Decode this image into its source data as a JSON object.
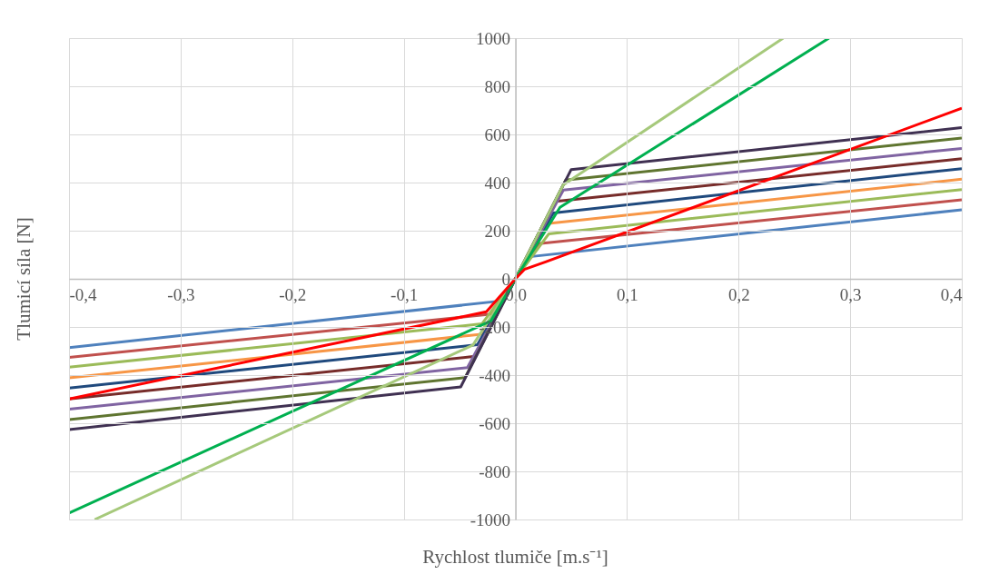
{
  "chart_data": {
    "type": "line",
    "xlabel": "Rychlost tlumiče [m.s⁻¹]",
    "ylabel": "Tlumicí síla [N]",
    "xlim": [
      -0.4,
      0.4
    ],
    "ylim": [
      -1000,
      1000
    ],
    "xticks": [
      {
        "value": -0.4,
        "label": "-0,4"
      },
      {
        "value": -0.3,
        "label": "-0,3"
      },
      {
        "value": -0.2,
        "label": "-0,2"
      },
      {
        "value": -0.1,
        "label": "-0,1"
      },
      {
        "value": 0,
        "label": "0,0"
      },
      {
        "value": 0.1,
        "label": "0,1"
      },
      {
        "value": 0.2,
        "label": "0,2"
      },
      {
        "value": 0.3,
        "label": "0,3"
      },
      {
        "value": 0.4,
        "label": "0,4"
      }
    ],
    "yticks": [
      -1000,
      -800,
      -600,
      -400,
      -200,
      0,
      200,
      400,
      600,
      800,
      1000
    ],
    "grid": true,
    "marker": "none",
    "line_style": "solid",
    "series": [
      {
        "color": "#4f81bd",
        "x": [
          -0.4,
          -0.013,
          0,
          0.013,
          0.4
        ],
        "values": [
          -286,
          -92,
          0,
          92,
          287
        ]
      },
      {
        "color": "#c0504d",
        "x": [
          -0.4,
          -0.021,
          0,
          0.021,
          0.4
        ],
        "values": [
          -326,
          -146,
          0,
          146,
          328
        ]
      },
      {
        "color": "#9bbb59",
        "x": [
          -0.4,
          -0.03,
          0,
          0.03,
          0.4
        ],
        "values": [
          -367,
          -187,
          0,
          187,
          371
        ]
      },
      {
        "color": "#f79646",
        "x": [
          -0.4,
          -0.03,
          0,
          0.03,
          0.4
        ],
        "values": [
          -411,
          -230,
          0,
          230,
          414
        ]
      },
      {
        "color": "#1f497d",
        "x": [
          -0.4,
          -0.034,
          0,
          0.034,
          0.4
        ],
        "values": [
          -454,
          -274,
          0,
          274,
          458
        ]
      },
      {
        "color": "#772c2a",
        "x": [
          -0.4,
          -0.036,
          0,
          0.036,
          0.4
        ],
        "values": [
          -499,
          -322,
          0,
          322,
          499
        ]
      },
      {
        "color": "#8064a2",
        "x": [
          -0.4,
          -0.043,
          0,
          0.043,
          0.4
        ],
        "values": [
          -542,
          -369,
          0,
          369,
          542
        ]
      },
      {
        "color": "#5f7530",
        "x": [
          -0.4,
          -0.045,
          0,
          0.045,
          0.4
        ],
        "values": [
          -585,
          -410,
          0,
          410,
          585
        ]
      },
      {
        "color": "#403152",
        "x": [
          -0.4,
          -0.049,
          0,
          0.05,
          0.4
        ],
        "values": [
          -626,
          -449,
          0,
          454,
          628
        ]
      },
      {
        "color": "#a6c97b",
        "x": [
          -0.377,
          -0.038,
          0,
          0.043,
          0.24
        ],
        "values": [
          -1000,
          -275,
          0,
          391,
          1000
        ]
      },
      {
        "color": "#00b050",
        "x": [
          -0.4,
          -0.022,
          0,
          0.04,
          0.281
        ],
        "values": [
          -973,
          -175,
          0,
          297,
          1000
        ]
      },
      {
        "color": "#ff0000",
        "x": [
          -0.4,
          -0.026,
          0,
          0.008,
          0.027,
          0.4
        ],
        "values": [
          -499,
          -137,
          0,
          39,
          70,
          709
        ]
      }
    ]
  }
}
